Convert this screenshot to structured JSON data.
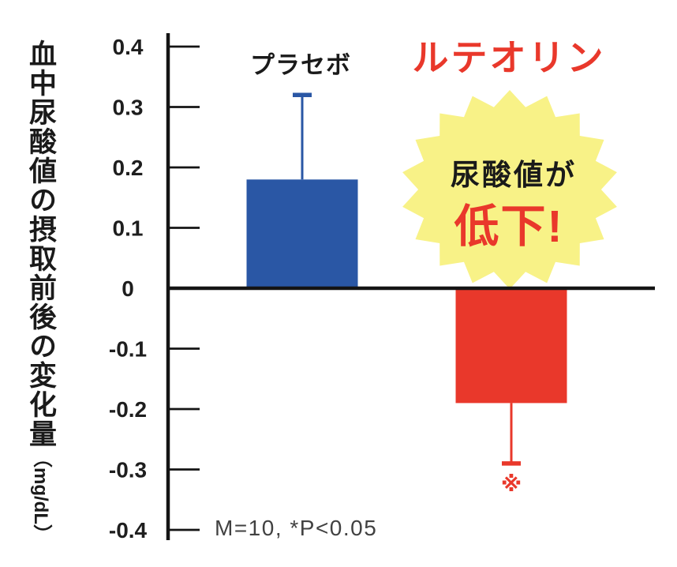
{
  "chart_data": {
    "type": "bar",
    "title": "",
    "ylabel_main": "血中尿酸値の摂取前後の変化量",
    "ylabel_unit": "（mg/dL）",
    "ylim": [
      -0.4,
      0.4
    ],
    "yticks": [
      "0.4",
      "0.3",
      "0.2",
      "0.1",
      "0",
      "-0.1",
      "-0.2",
      "-0.3",
      "-0.4"
    ],
    "grid": false,
    "legend": "none",
    "categories": [
      "プラセボ",
      "ルテオリン"
    ],
    "series": [
      {
        "key": "placebo",
        "name": "プラセボ",
        "value": 0.18,
        "whisker_end": 0.32,
        "color": "#2a57a5",
        "label_color": "#1a1a1a"
      },
      {
        "key": "luteolin",
        "name": "ルテオリン",
        "value": -0.19,
        "whisker_end": -0.29,
        "color": "#e9382b",
        "label_color": "#e9382b"
      }
    ],
    "badge": {
      "line1": "尿酸値が",
      "line2": "低下!",
      "bg_color": "#f8f287",
      "line1_color": "#1a1a1a",
      "line2_color": "#e9382b"
    },
    "significance_marker": "※",
    "significance_color": "#e9382b",
    "annotation": "M=10, *P<0.05",
    "annotation_color": "#414141",
    "axis_color": "#141414",
    "tick_label_color": "#1e1e1e"
  }
}
